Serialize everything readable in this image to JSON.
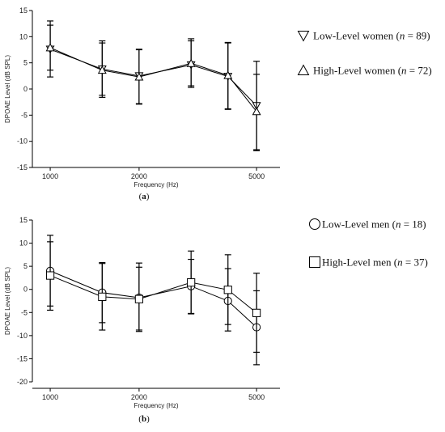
{
  "chart_data": [
    {
      "type": "line",
      "panel_label": "(a)",
      "panel_letter": "a",
      "xlabel": "Frequency (Hz)",
      "ylabel": "DPOAE Level (dB SPL)",
      "xscale": "log",
      "xlim": [
        870,
        6000
      ],
      "ylim": [
        -15,
        15
      ],
      "xticks": [
        1000,
        2000,
        5000
      ],
      "xtick_labels": [
        "1000",
        "2000",
        "5000"
      ],
      "yticks": [
        -15,
        -10,
        -5,
        0,
        5,
        10,
        15
      ],
      "ytick_labels": [
        "-15",
        "-10",
        "-5",
        "0",
        "5",
        "10",
        "15"
      ],
      "x": [
        1000,
        1500,
        2000,
        3000,
        4000,
        5000
      ],
      "legend_position": "right",
      "series": [
        {
          "name_prefix": "Low-Level women (",
          "name_italic": "n",
          "name_suffix": " = 89)",
          "marker": "triangle-down",
          "values": [
            7.6,
            3.8,
            2.5,
            4.6,
            2.4,
            -3.2
          ],
          "err_low": [
            2.3,
            -1.2,
            -2.8,
            0.3,
            -3.8,
            -11.6
          ],
          "err_high": [
            13,
            9.2,
            7.6,
            9.6,
            8.8,
            5.3
          ]
        },
        {
          "name_prefix": "High-Level women (",
          "name_italic": "n",
          "name_suffix": " = 72)",
          "marker": "triangle-up",
          "values": [
            7.9,
            3.6,
            2.3,
            4.9,
            2.6,
            -4.3
          ],
          "err_low": [
            3.6,
            -1.6,
            -2.9,
            0.6,
            -3.9,
            -11.8
          ],
          "err_high": [
            12.2,
            8.8,
            7.5,
            9.2,
            8.9,
            2.8
          ]
        }
      ]
    },
    {
      "type": "line",
      "panel_label": "(b)",
      "panel_letter": "b",
      "xlabel": "Frequency (Hz)",
      "ylabel": "DPOAE Level (dB SPL)",
      "xscale": "log",
      "xlim": [
        870,
        6000
      ],
      "ylim": [
        -20,
        15
      ],
      "xticks": [
        1000,
        2000,
        5000
      ],
      "xtick_labels": [
        "1000",
        "2000",
        "5000"
      ],
      "yticks": [
        -20,
        -15,
        -10,
        -5,
        0,
        5,
        10,
        15
      ],
      "ytick_labels": [
        "-20",
        "-15",
        "-10",
        "-5",
        "0",
        "5",
        "10",
        "15"
      ],
      "x": [
        1000,
        1500,
        2000,
        3000,
        4000,
        5000
      ],
      "legend_position": "right",
      "series": [
        {
          "name_prefix": "Low-Level men (",
          "name_italic": "n",
          "name_suffix": " = 18)",
          "marker": "circle",
          "values": [
            4,
            -0.7,
            -1.8,
            0.7,
            -2.5,
            -8.2
          ],
          "err_low": [
            -3.6,
            -7.2,
            -8.8,
            -5.2,
            -9,
            -16.3
          ],
          "err_high": [
            11.7,
            5.8,
            5.7,
            6.5,
            4.5,
            -0.3
          ]
        },
        {
          "name_prefix": "High-Level men (",
          "name_italic": "n",
          "name_suffix": " = 37)",
          "marker": "square",
          "values": [
            3,
            -1.6,
            -2.1,
            1.5,
            -0.1,
            -5.1
          ],
          "err_low": [
            -4.5,
            -8.8,
            -9.1,
            -5.3,
            -7.6,
            -13.6
          ],
          "err_high": [
            10.3,
            5.6,
            4.8,
            8.3,
            7.5,
            3.5
          ]
        }
      ]
    }
  ]
}
